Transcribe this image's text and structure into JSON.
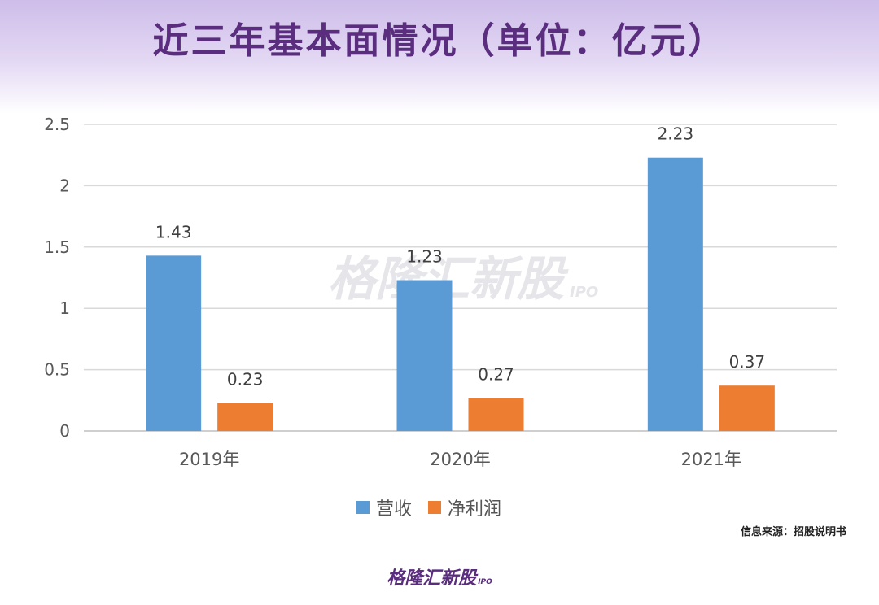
{
  "title": "近三年基本面情况（单位：亿元）",
  "source": "信息来源：招股说明书",
  "brand": {
    "name": "格隆汇新股",
    "sub": "IPO"
  },
  "watermark": {
    "name": "格隆汇新股",
    "sub": "IPO"
  },
  "colors": {
    "revenue": "#5b9bd5",
    "profit": "#ed7d31",
    "title": "#5a2d7e"
  },
  "chart_data": {
    "type": "bar",
    "categories": [
      "2019年",
      "2020年",
      "2021年"
    ],
    "series": [
      {
        "name": "营收",
        "values": [
          1.43,
          1.23,
          2.23
        ],
        "color": "#5b9bd5"
      },
      {
        "name": "净利润",
        "values": [
          0.23,
          0.27,
          0.37
        ],
        "color": "#ed7d31"
      }
    ],
    "ylim": [
      0,
      2.5
    ],
    "yticks": [
      "0",
      "0.5",
      "1",
      "1.5",
      "2",
      "2.5"
    ],
    "legend_position": "bottom",
    "grid": true
  }
}
